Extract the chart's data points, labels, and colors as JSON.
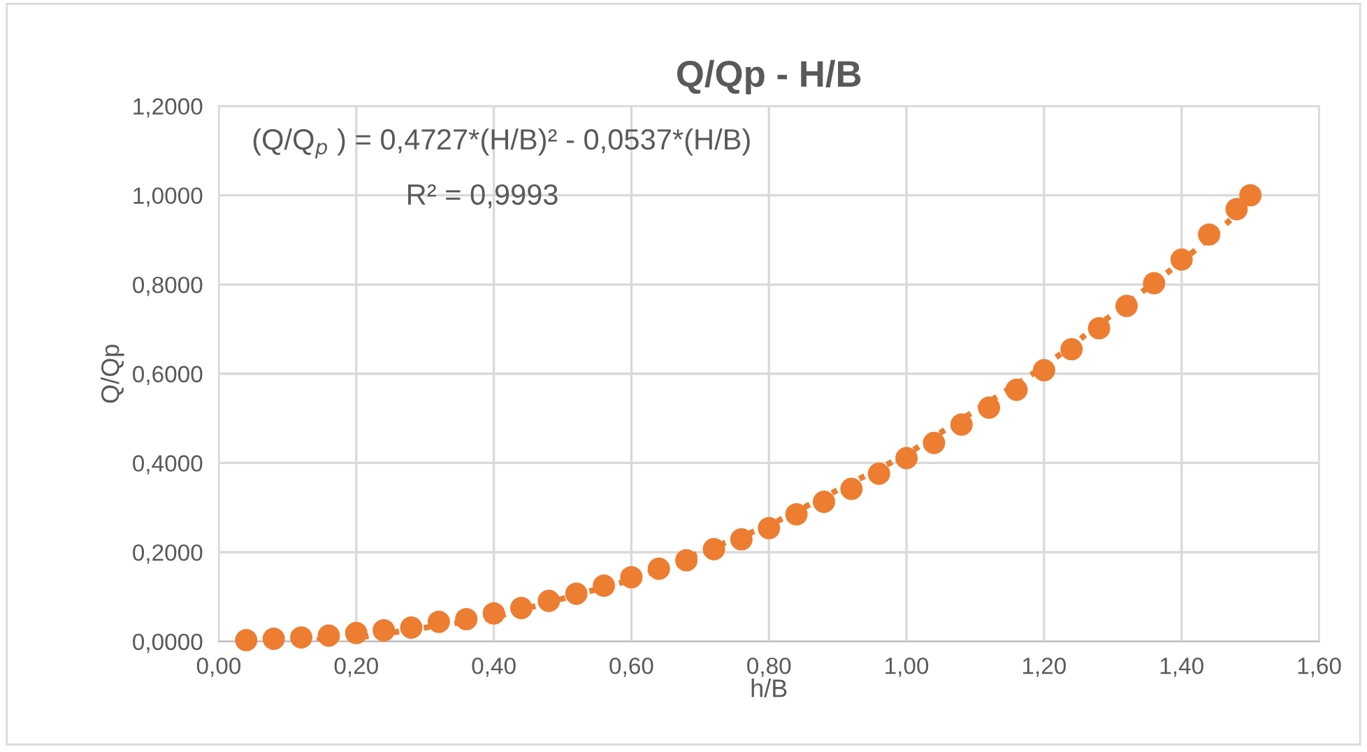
{
  "chart_data": {
    "type": "scatter",
    "title": "Q/Qp - H/B",
    "xlabel": "h/B",
    "ylabel": "Q/Qp",
    "annotations": [
      "(Q/Q$_{p}$ ) = 0,4727*(H/B)² - 0,0537*(H/B)",
      "R² = 0,9993"
    ],
    "series": [
      {
        "color": "#ed7d31",
        "marker": "circle",
        "x": [
          0.04,
          0.08,
          0.12,
          0.16,
          0.2,
          0.24,
          0.28,
          0.32,
          0.36,
          0.4,
          0.44,
          0.48,
          0.52,
          0.56,
          0.6,
          0.64,
          0.68,
          0.72,
          0.76,
          0.8,
          0.84,
          0.88,
          0.92,
          0.96,
          1.0,
          1.04,
          1.08,
          1.12,
          1.16,
          1.2,
          1.24,
          1.28,
          1.32,
          1.36,
          1.4,
          1.44,
          1.48,
          1.5
        ],
        "values": [
          0.003,
          0.006,
          0.009,
          0.013,
          0.019,
          0.025,
          0.031,
          0.044,
          0.05,
          0.063,
          0.075,
          0.091,
          0.107,
          0.125,
          0.144,
          0.163,
          0.182,
          0.207,
          0.229,
          0.254,
          0.285,
          0.313,
          0.342,
          0.376,
          0.411,
          0.445,
          0.486,
          0.524,
          0.564,
          0.608,
          0.655,
          0.702,
          0.752,
          0.803,
          0.856,
          0.912,
          0.969,
          1.0
        ]
      },
      {
        "type": "line",
        "color": "#ed7d31",
        "line_style": "dotted",
        "marker": "none",
        "x": [
          0.12,
          0.2,
          0.4,
          0.6,
          0.8,
          1.0,
          1.2,
          1.4,
          1.5
        ],
        "values": [
          0.0,
          0.008,
          0.054,
          0.138,
          0.26,
          0.419,
          0.616,
          0.851,
          0.983
        ]
      }
    ],
    "xlim": [
      0,
      1.6
    ],
    "ylim": [
      0,
      1.2
    ],
    "xticks": [
      {
        "value": 0,
        "label": "0,00"
      },
      {
        "value": 0.2,
        "label": "0,20"
      },
      {
        "value": 0.4,
        "label": "0,40"
      },
      {
        "value": 0.6,
        "label": "0,60"
      },
      {
        "value": 0.8,
        "label": "0,80"
      },
      {
        "value": 1.0,
        "label": "1,00"
      },
      {
        "value": 1.2,
        "label": "1,20"
      },
      {
        "value": 1.4,
        "label": "1,40"
      },
      {
        "value": 1.6,
        "label": "1,60"
      }
    ],
    "yticks": [
      {
        "value": 0,
        "label": "0,0000"
      },
      {
        "value": 0.2,
        "label": "0,2000"
      },
      {
        "value": 0.4,
        "label": "0,4000"
      },
      {
        "value": 0.6,
        "label": "0,6000"
      },
      {
        "value": 0.8,
        "label": "0,8000"
      },
      {
        "value": 1.0,
        "label": "1,0000"
      },
      {
        "value": 1.2,
        "label": "1,2000"
      }
    ],
    "grid": true,
    "legend": false
  }
}
